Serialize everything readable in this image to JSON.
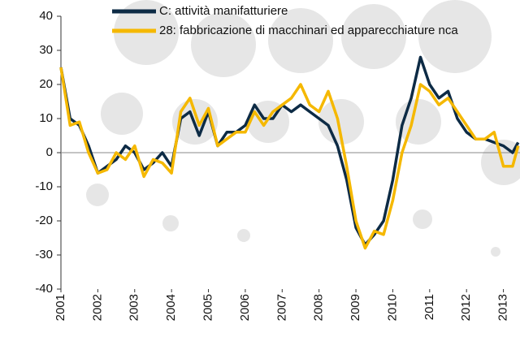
{
  "chart_data": {
    "type": "line",
    "x": [
      2001.0,
      2001.25,
      2001.5,
      2001.75,
      2002.0,
      2002.25,
      2002.5,
      2002.75,
      2003.0,
      2003.25,
      2003.5,
      2003.75,
      2004.0,
      2004.25,
      2004.5,
      2004.75,
      2005.0,
      2005.25,
      2005.5,
      2005.75,
      2006.0,
      2006.25,
      2006.5,
      2006.75,
      2007.0,
      2007.25,
      2007.5,
      2007.75,
      2008.0,
      2008.25,
      2008.5,
      2008.75,
      2009.0,
      2009.25,
      2009.5,
      2009.75,
      2010.0,
      2010.25,
      2010.5,
      2010.75,
      2011.0,
      2011.25,
      2011.5,
      2011.75,
      2012.0,
      2012.25,
      2012.5,
      2012.75,
      2013.0,
      2013.25,
      2013.4
    ],
    "series": [
      {
        "name": "C: attività manifatturiere",
        "color": "#0d2b45",
        "values": [
          25,
          10,
          8,
          2,
          -6,
          -4,
          -2,
          2,
          0,
          -5,
          -3,
          0,
          -4,
          10,
          12,
          5,
          12,
          2,
          6,
          6,
          8,
          14,
          10,
          10,
          14,
          12,
          14,
          12,
          10,
          8,
          2,
          -8,
          -22,
          -27,
          -24,
          -20,
          -8,
          8,
          16,
          28,
          20,
          16,
          18,
          10,
          6,
          4,
          4,
          3,
          2,
          0,
          3
        ]
      },
      {
        "name": "28: fabbricazione di macchinari ed apparecchiature nca",
        "color": "#f5b800",
        "values": [
          25,
          8,
          9,
          0,
          -6,
          -5,
          0,
          -2,
          2,
          -7,
          -2,
          -3,
          -6,
          12,
          16,
          8,
          13,
          2,
          4,
          6,
          6,
          12,
          8,
          12,
          14,
          16,
          20,
          14,
          12,
          18,
          10,
          -4,
          -20,
          -28,
          -23,
          -24,
          -14,
          0,
          8,
          20,
          18,
          14,
          16,
          12,
          8,
          4,
          4,
          6,
          -4,
          -4,
          2
        ]
      }
    ],
    "xlim": [
      2001,
      2013.45
    ],
    "xticks": [
      2001,
      2002,
      2003,
      2004,
      2005,
      2006,
      2007,
      2008,
      2009,
      2010,
      2011,
      2012,
      2013
    ],
    "ylim": [
      -40,
      40
    ],
    "yticks": [
      -40,
      -30,
      -20,
      -10,
      0,
      10,
      20,
      30,
      40
    ],
    "legend": "top"
  }
}
